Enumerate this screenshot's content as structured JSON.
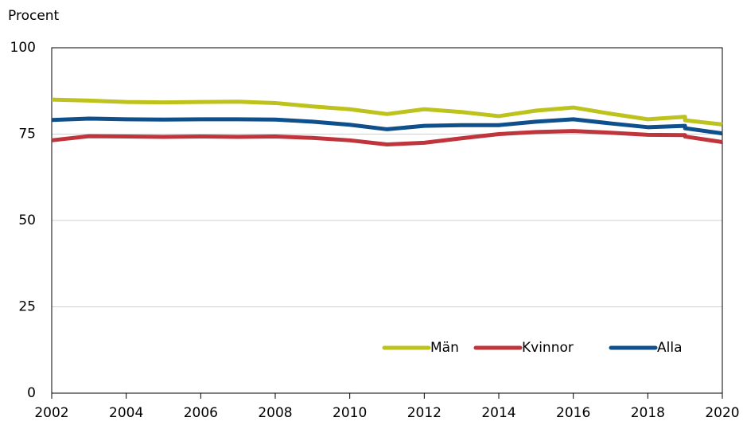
{
  "chart_data": {
    "type": "line",
    "ylabel": "Procent",
    "x": [
      2002,
      2003,
      2004,
      2005,
      2006,
      2007,
      2008,
      2009,
      2010,
      2011,
      2012,
      2013,
      2014,
      2015,
      2016,
      2017,
      2018,
      2019,
      2019,
      2020
    ],
    "series": [
      {
        "name": "Män",
        "color": "#bdc31c",
        "values": [
          85.0,
          84.7,
          84.3,
          84.2,
          84.3,
          84.4,
          84.0,
          83.0,
          82.2,
          80.8,
          82.2,
          81.4,
          80.2,
          81.8,
          82.7,
          80.9,
          79.3,
          80.0,
          79.0,
          77.8
        ]
      },
      {
        "name": "Kvinnor",
        "color": "#c0343c",
        "values": [
          73.2,
          74.4,
          74.3,
          74.2,
          74.3,
          74.2,
          74.3,
          73.9,
          73.2,
          72.0,
          72.5,
          73.8,
          75.0,
          75.6,
          75.9,
          75.4,
          74.8,
          74.7,
          74.3,
          72.7
        ]
      },
      {
        "name": "Alla",
        "color": "#0e4f8c",
        "values": [
          79.1,
          79.5,
          79.3,
          79.2,
          79.3,
          79.3,
          79.2,
          78.6,
          77.7,
          76.4,
          77.4,
          77.6,
          77.6,
          78.6,
          79.3,
          78.1,
          77.0,
          77.4,
          76.7,
          75.2
        ]
      }
    ],
    "xlim": [
      2002,
      2020
    ],
    "xticks": [
      2002,
      2004,
      2006,
      2008,
      2010,
      2012,
      2014,
      2016,
      2018,
      2020
    ],
    "ylim": [
      0,
      100
    ],
    "yticks": [
      0,
      25,
      50,
      75,
      100
    ],
    "grid": true,
    "legend": "bottom-right"
  }
}
